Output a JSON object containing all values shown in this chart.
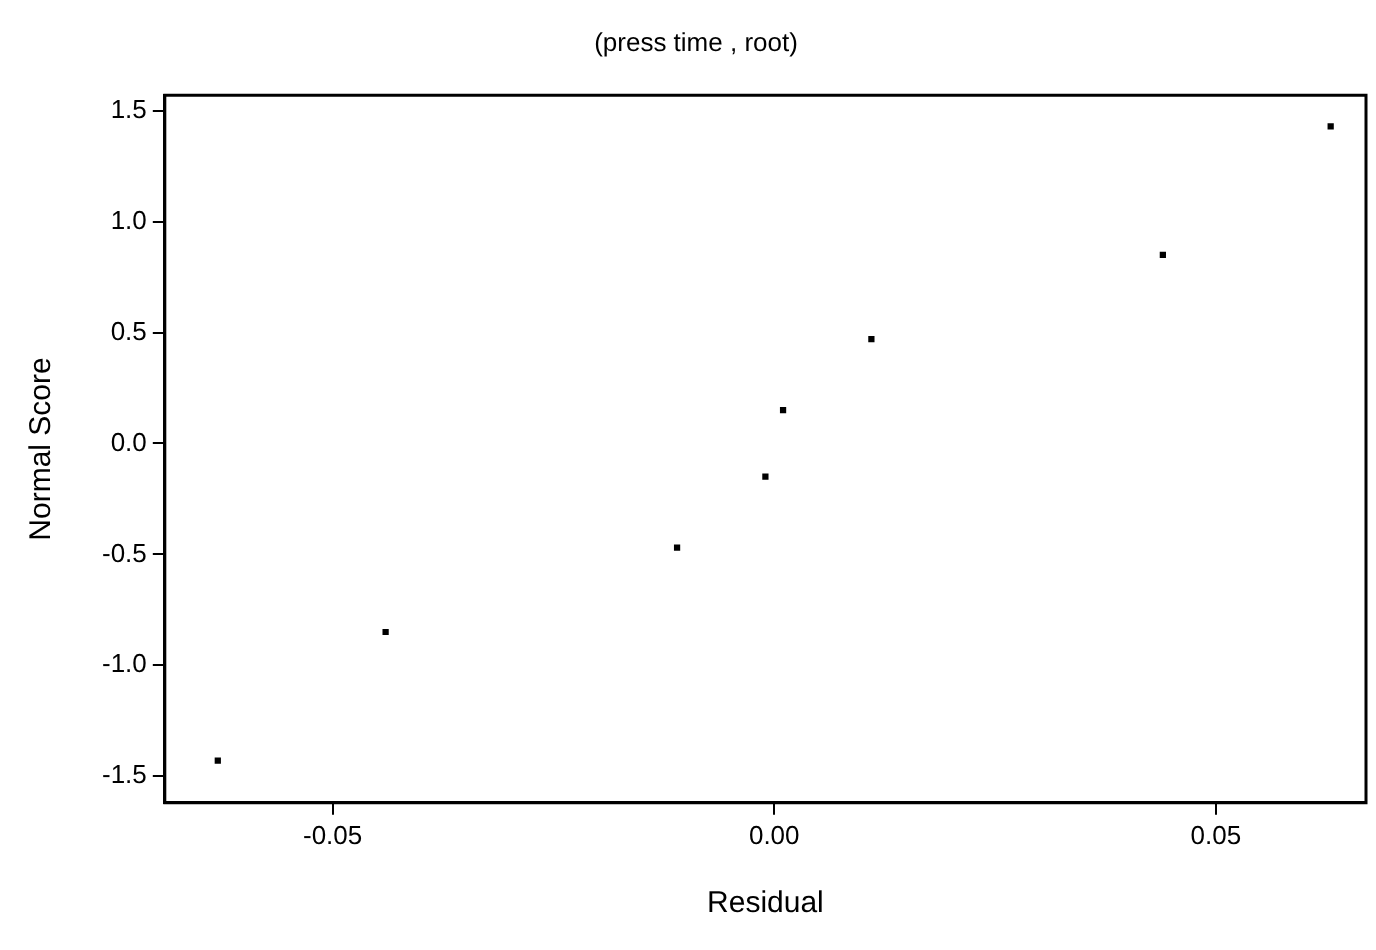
{
  "chart_data": {
    "type": "scatter",
    "title": "(press time , root)",
    "xlabel": "Residual",
    "ylabel": "Normal Score",
    "x": [
      -0.063,
      -0.044,
      -0.011,
      -0.001,
      0.001,
      0.011,
      0.044,
      0.063
    ],
    "values": [
      -1.43,
      -0.85,
      -0.47,
      -0.15,
      0.15,
      0.47,
      0.85,
      1.43
    ],
    "color": "#000000",
    "marker": "square",
    "xlim": [
      -0.069,
      0.067
    ],
    "xticks": [
      {
        "value": -0.05,
        "label": "-0.05"
      },
      {
        "value": 0,
        "label": "0.00"
      },
      {
        "value": 0.05,
        "label": "0.05"
      }
    ],
    "ylim": [
      -1.62,
      1.57
    ],
    "yticks": [
      {
        "value": -1.5,
        "label": "-1.5"
      },
      {
        "value": -1,
        "label": "-1.0"
      },
      {
        "value": -0.5,
        "label": "-0.5"
      },
      {
        "value": 0,
        "label": "0.0"
      },
      {
        "value": 0.5,
        "label": "0.5"
      },
      {
        "value": 1,
        "label": "1.0"
      },
      {
        "value": 1.5,
        "label": "1.5"
      }
    ],
    "grid": false
  }
}
